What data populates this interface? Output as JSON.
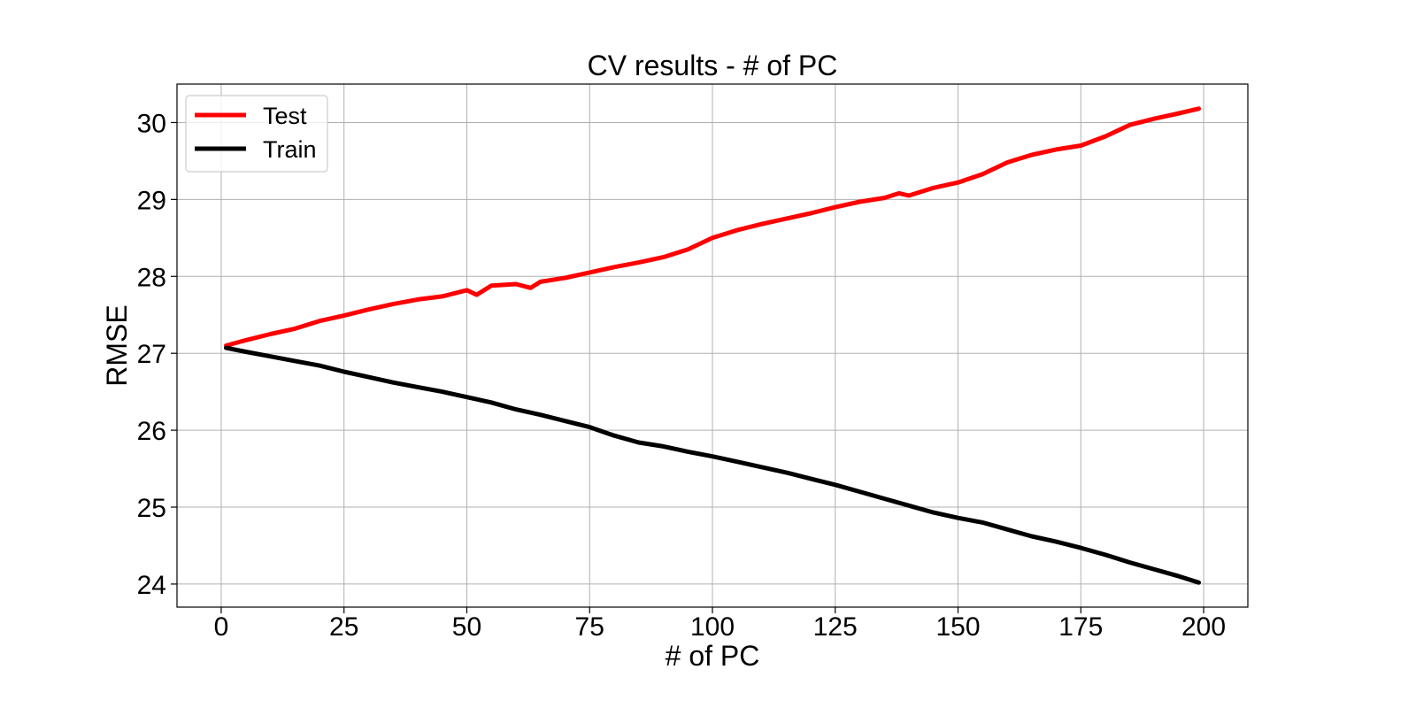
{
  "chart_data": {
    "type": "line",
    "title": "CV results - # of PC",
    "xlabel": "# of PC",
    "ylabel": "RMSE",
    "xlim": [
      -9,
      209
    ],
    "ylim": [
      23.7,
      30.5
    ],
    "xticks": [
      0,
      25,
      50,
      75,
      100,
      125,
      150,
      175,
      200
    ],
    "yticks": [
      24,
      25,
      26,
      27,
      28,
      29,
      30
    ],
    "grid": true,
    "legend_position": "top-left",
    "series": [
      {
        "name": "Test",
        "color": "#ff0000",
        "x": [
          1,
          5,
          10,
          15,
          20,
          25,
          30,
          35,
          40,
          45,
          50,
          52,
          55,
          60,
          63,
          65,
          70,
          75,
          80,
          85,
          90,
          95,
          100,
          105,
          110,
          115,
          120,
          125,
          130,
          135,
          138,
          140,
          145,
          150,
          155,
          160,
          165,
          170,
          175,
          180,
          185,
          190,
          195,
          199
        ],
        "y": [
          27.1,
          27.17,
          27.25,
          27.32,
          27.42,
          27.49,
          27.57,
          27.64,
          27.7,
          27.74,
          27.82,
          27.76,
          27.88,
          27.9,
          27.85,
          27.93,
          27.98,
          28.05,
          28.12,
          28.18,
          28.25,
          28.35,
          28.5,
          28.6,
          28.68,
          28.75,
          28.82,
          28.9,
          28.97,
          29.02,
          29.08,
          29.05,
          29.15,
          29.22,
          29.33,
          29.48,
          29.58,
          29.65,
          29.7,
          29.82,
          29.97,
          30.05,
          30.12,
          30.18
        ]
      },
      {
        "name": "Train",
        "color": "#000000",
        "x": [
          1,
          5,
          10,
          15,
          20,
          25,
          30,
          35,
          40,
          45,
          50,
          55,
          60,
          65,
          70,
          75,
          80,
          85,
          90,
          95,
          100,
          105,
          110,
          115,
          120,
          125,
          130,
          135,
          140,
          145,
          150,
          155,
          160,
          165,
          170,
          175,
          180,
          185,
          190,
          195,
          199
        ],
        "y": [
          27.07,
          27.02,
          26.96,
          26.9,
          26.84,
          26.76,
          26.69,
          26.62,
          26.56,
          26.5,
          26.43,
          26.36,
          26.27,
          26.2,
          26.12,
          26.04,
          25.93,
          25.84,
          25.79,
          25.72,
          25.66,
          25.59,
          25.52,
          25.45,
          25.37,
          25.29,
          25.2,
          25.11,
          25.02,
          24.93,
          24.86,
          24.8,
          24.71,
          24.62,
          24.55,
          24.47,
          24.38,
          24.28,
          24.19,
          24.1,
          24.02
        ]
      }
    ]
  }
}
